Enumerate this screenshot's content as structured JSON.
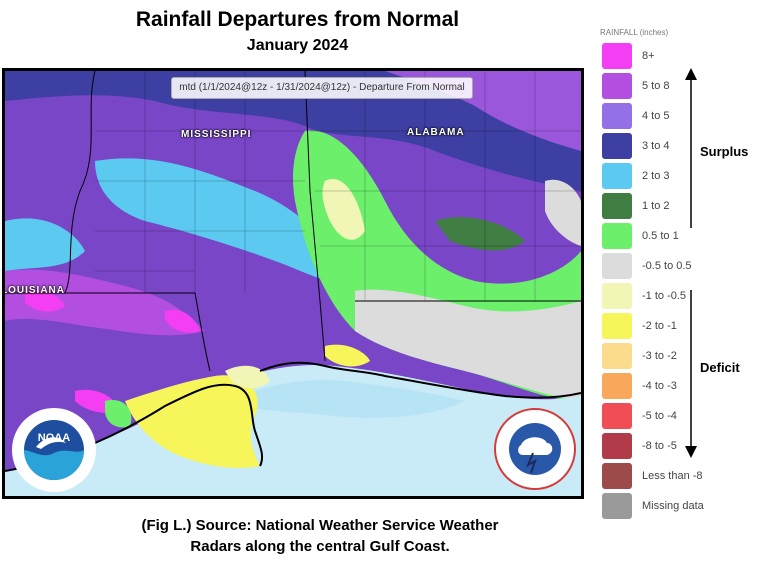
{
  "title": "Rainfall Departures from Normal",
  "subtitle": "January 2024",
  "map": {
    "header": "mtd (1/1/2024@12z - 1/31/2024@12z) - Departure From Normal",
    "state_labels": {
      "mississippi": "MISSISSIPPI",
      "alabama": "ALABAMA",
      "louisiana": "LOUISIANA"
    }
  },
  "legend": {
    "title": "RAINFALL (inches)",
    "items": [
      {
        "label": "8+",
        "color": "#f43ef4"
      },
      {
        "label": "5 to 8",
        "color": "#b24fe0"
      },
      {
        "label": "4 to 5",
        "color": "#9370e6"
      },
      {
        "label": "3 to 4",
        "color": "#3d3fa3"
      },
      {
        "label": "2 to 3",
        "color": "#5ccaf0"
      },
      {
        "label": "1 to 2",
        "color": "#3f7d43"
      },
      {
        "label": "0.5 to 1",
        "color": "#6cf06c"
      },
      {
        "label": "-0.5 to 0.5",
        "color": "#dcdcdc"
      },
      {
        "label": "-1 to -0.5",
        "color": "#f1f6b6"
      },
      {
        "label": "-2 to -1",
        "color": "#f6f65a"
      },
      {
        "label": "-3 to -2",
        "color": "#fbdc8c"
      },
      {
        "label": "-4 to -3",
        "color": "#f7a85b"
      },
      {
        "label": "-5 to -4",
        "color": "#f04e54"
      },
      {
        "label": "-8 to -5",
        "color": "#b23b4a"
      },
      {
        "label": "Less than -8",
        "color": "#9c4a4a"
      },
      {
        "label": "Missing data",
        "color": "#9a9a9a"
      }
    ],
    "surplus_label": "Surplus",
    "deficit_label": "Deficit"
  },
  "caption": {
    "line1": "(Fig L.) Source: National Weather Service Weather",
    "line2": "Radars along the central Gulf Coast."
  },
  "logos": {
    "noaa_text": "NOAA",
    "noaa_ring": "NATIONAL OCEANIC AND ATMOSPHERIC ADMINISTRATION · U.S. DEPARTMENT OF COMMERCE",
    "nws_ring": "NATIONAL WEATHER SERVICE"
  }
}
